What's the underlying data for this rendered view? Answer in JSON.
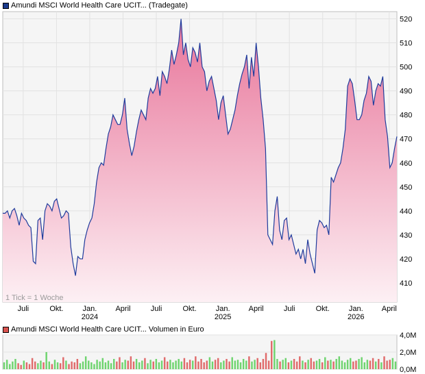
{
  "price_legend": {
    "label": "Amundi MSCI World Health Care UCIT... (Tradegate)",
    "color": "#1a3a8c"
  },
  "volume_legend": {
    "label": "Amundi MSCI World Health Care UCIT... Volumen in Euro",
    "color": "#d9534f"
  },
  "tick_note": "1 Tick = 1 Woche",
  "colors": {
    "line": "#1f3b9c",
    "area_top": "#e8759a",
    "area_bottom": "#fdf0f4",
    "vol_up": "#6fd46f",
    "vol_down": "#e06b6b",
    "grid": "#e2e2e2",
    "plot_bg": "#f5f5f5"
  },
  "chart_data": [
    {
      "type": "area",
      "ylim": [
        402,
        523
      ],
      "yticks": [
        410,
        420,
        430,
        440,
        450,
        460,
        470,
        480,
        490,
        500,
        510,
        520
      ],
      "x_tick_labels": [
        {
          "label": "Juli",
          "year": "",
          "x": 8
        },
        {
          "label": "Okt.",
          "year": "",
          "x": 21
        },
        {
          "label": "Jan.",
          "year": "2024",
          "x": 34
        },
        {
          "label": "April",
          "year": "",
          "x": 47
        },
        {
          "label": "Juli",
          "year": "",
          "x": 60
        },
        {
          "label": "Okt.",
          "year": "",
          "x": 73
        },
        {
          "label": "Jan.",
          "year": "2025",
          "x": 86
        },
        {
          "label": "April",
          "year": "",
          "x": 99
        },
        {
          "label": "Juli",
          "year": "",
          "x": 112
        },
        {
          "label": "Okt.",
          "year": "",
          "x": 125
        },
        {
          "label": "Jan.",
          "year": "2026",
          "x": 138
        },
        {
          "label": "April",
          "year": "",
          "x": 151
        }
      ],
      "xlim": [
        0,
        154
      ],
      "y": [
        439,
        439,
        440,
        437,
        440,
        441,
        438,
        434,
        439,
        437,
        436,
        434,
        433,
        419,
        418,
        436,
        437,
        428,
        440,
        443,
        442,
        440,
        444,
        445,
        441,
        437,
        438,
        440,
        439,
        425,
        418,
        413,
        421,
        420,
        420,
        428,
        432,
        435,
        437,
        443,
        452,
        458,
        460,
        459,
        466,
        472,
        475,
        480,
        478,
        476,
        476,
        480,
        487,
        474,
        468,
        463,
        467,
        473,
        478,
        482,
        480,
        478,
        487,
        491,
        489,
        491,
        496,
        488,
        498,
        496,
        493,
        499,
        507,
        501,
        505,
        510,
        520,
        505,
        510,
        503,
        500,
        508,
        506,
        502,
        510,
        500,
        498,
        490,
        494,
        496,
        491,
        486,
        478,
        485,
        488,
        480,
        472,
        474,
        478,
        482,
        488,
        493,
        497,
        500,
        505,
        491,
        504,
        496,
        510,
        500,
        487,
        478,
        466,
        430,
        428,
        426,
        440,
        446,
        432,
        428,
        436,
        437,
        428,
        430,
        426,
        422,
        424,
        420,
        424,
        418,
        428,
        422,
        418,
        414,
        432,
        436,
        435,
        433,
        434,
        430,
        454,
        452,
        455,
        458,
        460,
        466,
        474,
        492,
        495,
        493,
        486,
        478,
        478,
        480,
        486,
        489,
        496,
        494,
        484,
        490,
        493,
        492,
        496,
        478,
        471,
        458,
        460,
        466,
        471
      ]
    },
    {
      "type": "bar",
      "ylim": [
        0,
        4.0
      ],
      "yticks": [
        0,
        2.0,
        4.0
      ],
      "ytick_labels": [
        "0,0M",
        "2,0M",
        "4,0M"
      ],
      "values": [
        0.8,
        1.1,
        0.6,
        0.9,
        1.2,
        0.7,
        0.5,
        1.0,
        0.8,
        0.6,
        1.3,
        0.9,
        0.7,
        1.0,
        0.8,
        2.0,
        0.9,
        0.6,
        1.1,
        0.8,
        0.7,
        1.4,
        1.0,
        0.6,
        0.9,
        0.8,
        1.2,
        0.7,
        0.9,
        1.5,
        1.0,
        0.8,
        0.6,
        1.1,
        0.9,
        1.3,
        0.8,
        1.0,
        0.7,
        1.2,
        0.9,
        1.4,
        0.8,
        1.1,
        1.0,
        1.5,
        0.9,
        1.2,
        0.8,
        1.0,
        1.3,
        0.7,
        1.1,
        0.9,
        1.2,
        0.8,
        1.0,
        1.4,
        0.9,
        1.1,
        0.8,
        1.0,
        1.2,
        0.9,
        1.3,
        0.8,
        1.1,
        1.0,
        1.5,
        0.9,
        1.2,
        0.8,
        1.0,
        1.4,
        0.9,
        1.1,
        1.3,
        0.8,
        1.0,
        1.2,
        0.9,
        1.4,
        1.0,
        1.1,
        0.8,
        1.2,
        1.0,
        1.5,
        0.9,
        1.1,
        1.3,
        0.8,
        1.2,
        1.9,
        1.0,
        3.3,
        3.4,
        1.2,
        0.9,
        1.1,
        1.3,
        0.8,
        1.0,
        1.2,
        0.9,
        1.5,
        1.0,
        0.8,
        1.1,
        1.3,
        0.9,
        1.0,
        1.2,
        0.8,
        1.4,
        1.0,
        1.1,
        0.9,
        1.2,
        1.5,
        1.0,
        0.8,
        1.1,
        1.3,
        0.9,
        1.0,
        1.2,
        1.4,
        0.8,
        1.1,
        1.0,
        1.3,
        0.9,
        1.2,
        0.8,
        1.5,
        1.0,
        1.1,
        1.3,
        0.9
      ]
    }
  ]
}
